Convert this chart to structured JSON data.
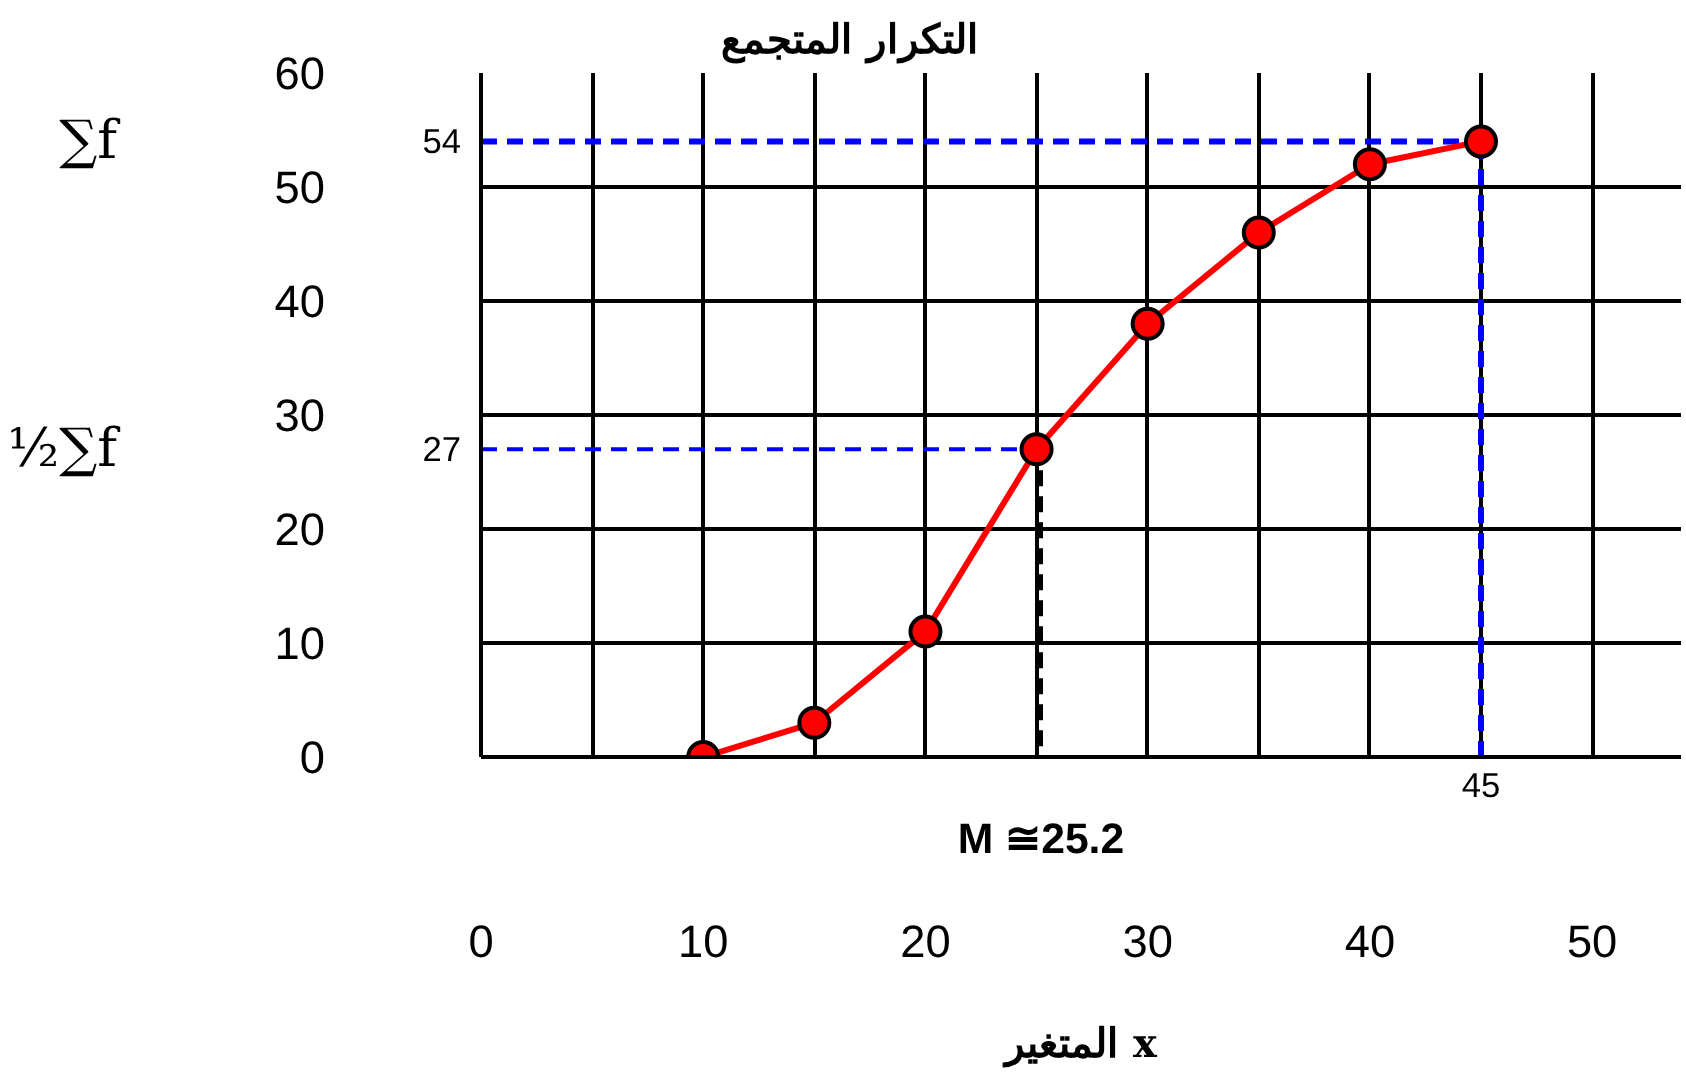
{
  "chart_data": {
    "type": "line",
    "ylabel": "التكرار المتجمع",
    "xlabel": "المتغير x",
    "x": [
      10,
      15,
      20,
      25,
      30,
      35,
      40,
      45
    ],
    "series": [
      {
        "color": "#ff0000",
        "values": [
          0,
          3,
          11,
          27,
          38,
          46,
          52,
          54
        ]
      }
    ],
    "marker": "circle",
    "xlim": [
      0,
      54
    ],
    "ylim": [
      0,
      60
    ],
    "xticks": [
      0,
      {
        "value": 5,
        "label": null
      },
      10,
      {
        "value": 15,
        "label": null
      },
      20,
      {
        "value": 25,
        "label": null
      },
      30,
      {
        "value": 35,
        "label": null
      },
      40,
      {
        "value": 45,
        "label": null
      },
      50
    ],
    "yticks": [
      0,
      10,
      20,
      30,
      40,
      50,
      60
    ],
    "grid": true,
    "annotations": [
      "∑f",
      "½∑f"
    ],
    "ref_lines": [
      {
        "axis": "y",
        "value": 54,
        "label": "54",
        "color": "#0000ff",
        "line_style": "dashed"
      },
      {
        "axis": "y",
        "value": 27,
        "label": "27",
        "color": "#0000ff",
        "line_style": "dashed"
      },
      {
        "axis": "x",
        "value": 45,
        "label": "45",
        "color": "#0000ff",
        "line_style": "dashed"
      },
      {
        "axis": "x",
        "value": 25.2,
        "label": "M ≅25.2",
        "color": "#000000",
        "line_style": "dashed"
      }
    ]
  }
}
